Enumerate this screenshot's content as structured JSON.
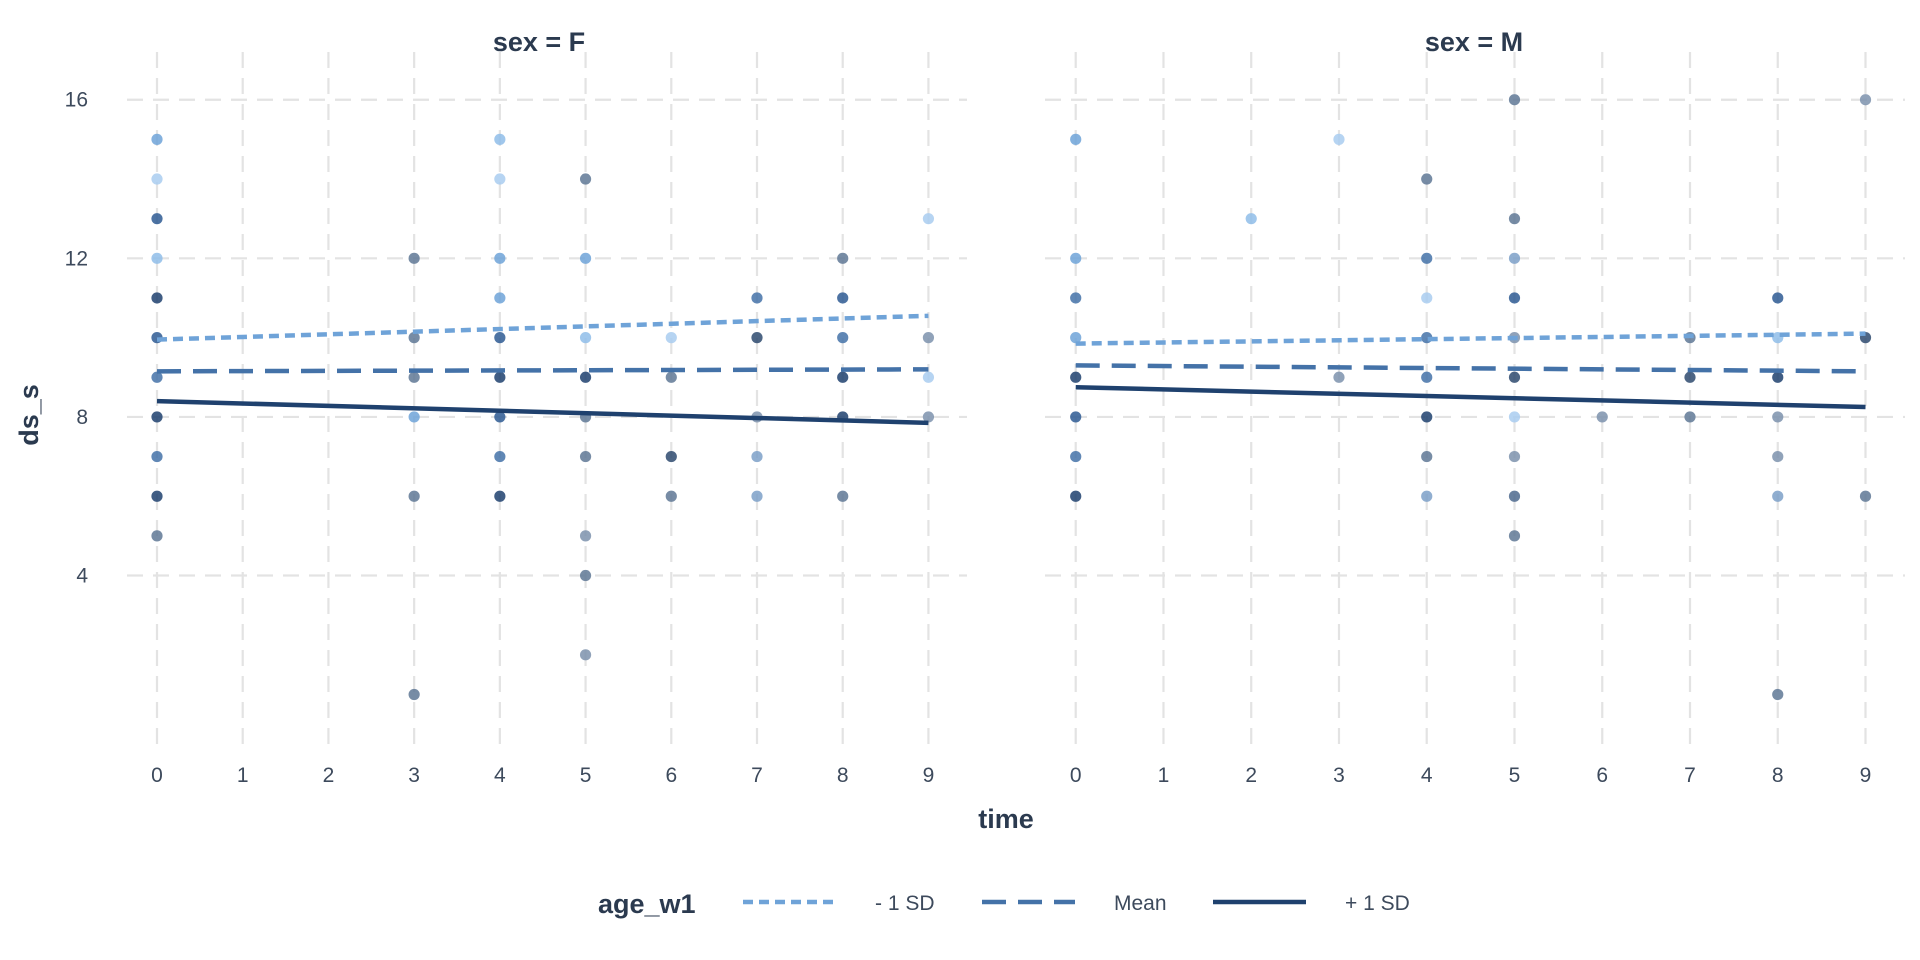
{
  "chart_data": {
    "type": "scatter",
    "title": "",
    "xlabel": "time",
    "ylabel": "ds_s",
    "xlim": [
      -0.35,
      9.45
    ],
    "ylim": [
      -0.4,
      16.8
    ],
    "x_ticks": [
      0,
      1,
      2,
      3,
      4,
      5,
      6,
      7,
      8,
      9
    ],
    "y_ticks": [
      4,
      8,
      12,
      16
    ],
    "grid": true,
    "legend": {
      "title": "age_w1",
      "position": "bottom",
      "entries": [
        {
          "label": "- 1 SD",
          "color": "#6fa3d8",
          "dash": "dotted"
        },
        {
          "label": "Mean",
          "color": "#4472a8",
          "dash": "dashed"
        },
        {
          "label": "+ 1 SD",
          "color": "#1f416e",
          "dash": "solid"
        }
      ]
    },
    "facets": [
      {
        "label": "sex = F",
        "lines": [
          {
            "name": "- 1 SD",
            "x": [
              0,
              9
            ],
            "y": [
              9.95,
              10.55
            ]
          },
          {
            "name": "Mean",
            "x": [
              0,
              9
            ],
            "y": [
              9.15,
              9.2
            ]
          },
          {
            "name": "+ 1 SD",
            "x": [
              0,
              9
            ],
            "y": [
              8.4,
              7.85
            ]
          }
        ],
        "points": [
          {
            "x": 0,
            "y": 15,
            "color": "#6fa3d8"
          },
          {
            "x": 0,
            "y": 14,
            "color": "#a9cdf0"
          },
          {
            "x": 0,
            "y": 13,
            "color": "#2e5a93"
          },
          {
            "x": 0,
            "y": 12,
            "color": "#8fbde9"
          },
          {
            "x": 0,
            "y": 11,
            "color": "#1f416e"
          },
          {
            "x": 0,
            "y": 10,
            "color": "#2e5a93"
          },
          {
            "x": 0,
            "y": 9,
            "color": "#4472a8"
          },
          {
            "x": 0,
            "y": 8,
            "color": "#1f416e"
          },
          {
            "x": 0,
            "y": 7,
            "color": "#4472a8"
          },
          {
            "x": 0,
            "y": 6,
            "color": "#1f416e"
          },
          {
            "x": 0,
            "y": 5,
            "color": "#5f7895"
          },
          {
            "x": 3,
            "y": 12,
            "color": "#5f7895"
          },
          {
            "x": 3,
            "y": 10,
            "color": "#5f7895"
          },
          {
            "x": 3,
            "y": 9,
            "color": "#5f7895"
          },
          {
            "x": 3,
            "y": 8,
            "color": "#6fa3d8"
          },
          {
            "x": 3,
            "y": 6,
            "color": "#5f7895"
          },
          {
            "x": 3,
            "y": 1,
            "color": "#5f7895"
          },
          {
            "x": 4,
            "y": 15,
            "color": "#8fbde9"
          },
          {
            "x": 4,
            "y": 14,
            "color": "#a9cdf0"
          },
          {
            "x": 4,
            "y": 12,
            "color": "#6fa3d8"
          },
          {
            "x": 4,
            "y": 11,
            "color": "#6fa3d8"
          },
          {
            "x": 4,
            "y": 10,
            "color": "#2e5a93"
          },
          {
            "x": 4,
            "y": 9,
            "color": "#1f416e"
          },
          {
            "x": 4,
            "y": 8,
            "color": "#2e5a93"
          },
          {
            "x": 4,
            "y": 7,
            "color": "#4472a8"
          },
          {
            "x": 4,
            "y": 6,
            "color": "#1f416e"
          },
          {
            "x": 5,
            "y": 14,
            "color": "#5f7895"
          },
          {
            "x": 5,
            "y": 12,
            "color": "#6fa3d8"
          },
          {
            "x": 5,
            "y": 10,
            "color": "#8fbde9"
          },
          {
            "x": 5,
            "y": 9,
            "color": "#1f416e"
          },
          {
            "x": 5,
            "y": 8,
            "color": "#5f7895"
          },
          {
            "x": 5,
            "y": 7,
            "color": "#5f7895"
          },
          {
            "x": 5,
            "y": 5,
            "color": "#7d92ad"
          },
          {
            "x": 5,
            "y": 4,
            "color": "#5f7895"
          },
          {
            "x": 5,
            "y": 2,
            "color": "#7d92ad"
          },
          {
            "x": 6,
            "y": 10,
            "color": "#a9cdf0"
          },
          {
            "x": 6,
            "y": 9,
            "color": "#5f7895"
          },
          {
            "x": 6,
            "y": 7,
            "color": "#2e4a6e"
          },
          {
            "x": 6,
            "y": 6,
            "color": "#5f7895"
          },
          {
            "x": 7,
            "y": 11,
            "color": "#4472a8"
          },
          {
            "x": 7,
            "y": 10,
            "color": "#2e4a6e"
          },
          {
            "x": 7,
            "y": 8,
            "color": "#7d92ad"
          },
          {
            "x": 7,
            "y": 7,
            "color": "#7da0c8"
          },
          {
            "x": 7,
            "y": 6,
            "color": "#7da0c8"
          },
          {
            "x": 8,
            "y": 12,
            "color": "#5f7895"
          },
          {
            "x": 8,
            "y": 11,
            "color": "#2e5a93"
          },
          {
            "x": 8,
            "y": 10,
            "color": "#4472a8"
          },
          {
            "x": 8,
            "y": 9,
            "color": "#1f416e"
          },
          {
            "x": 8,
            "y": 8,
            "color": "#1f416e"
          },
          {
            "x": 8,
            "y": 6,
            "color": "#5f7895"
          },
          {
            "x": 9,
            "y": 13,
            "color": "#a9cdf0"
          },
          {
            "x": 9,
            "y": 10,
            "color": "#7d92ad"
          },
          {
            "x": 9,
            "y": 9,
            "color": "#a9cdf0"
          },
          {
            "x": 9,
            "y": 8,
            "color": "#7d92ad"
          }
        ]
      },
      {
        "label": "sex = M",
        "lines": [
          {
            "name": "- 1 SD",
            "x": [
              0,
              9
            ],
            "y": [
              9.85,
              10.1
            ]
          },
          {
            "name": "Mean",
            "x": [
              0,
              9
            ],
            "y": [
              9.3,
              9.15
            ]
          },
          {
            "name": "+ 1 SD",
            "x": [
              0,
              9
            ],
            "y": [
              8.75,
              8.25
            ]
          }
        ],
        "points": [
          {
            "x": 0,
            "y": 15,
            "color": "#6fa3d8"
          },
          {
            "x": 0,
            "y": 12,
            "color": "#6fa3d8"
          },
          {
            "x": 0,
            "y": 11,
            "color": "#4472a8"
          },
          {
            "x": 0,
            "y": 10,
            "color": "#6fa3d8"
          },
          {
            "x": 0,
            "y": 9,
            "color": "#1f416e"
          },
          {
            "x": 0,
            "y": 8,
            "color": "#2e5a93"
          },
          {
            "x": 0,
            "y": 7,
            "color": "#4472a8"
          },
          {
            "x": 0,
            "y": 6,
            "color": "#1f416e"
          },
          {
            "x": 2,
            "y": 13,
            "color": "#8fbde9"
          },
          {
            "x": 3,
            "y": 15,
            "color": "#a9cdf0"
          },
          {
            "x": 3,
            "y": 9,
            "color": "#7d92ad"
          },
          {
            "x": 4,
            "y": 14,
            "color": "#5f7895"
          },
          {
            "x": 4,
            "y": 12,
            "color": "#4472a8"
          },
          {
            "x": 4,
            "y": 11,
            "color": "#a9cdf0"
          },
          {
            "x": 4,
            "y": 10,
            "color": "#4472a8"
          },
          {
            "x": 4,
            "y": 9,
            "color": "#4472a8"
          },
          {
            "x": 4,
            "y": 8,
            "color": "#1f416e"
          },
          {
            "x": 4,
            "y": 7,
            "color": "#5f7895"
          },
          {
            "x": 4,
            "y": 6,
            "color": "#7da0c8"
          },
          {
            "x": 5,
            "y": 16,
            "color": "#5f7895"
          },
          {
            "x": 5,
            "y": 13,
            "color": "#5f7895"
          },
          {
            "x": 5,
            "y": 12,
            "color": "#7da0c8"
          },
          {
            "x": 5,
            "y": 11,
            "color": "#2e5a93"
          },
          {
            "x": 5,
            "y": 10,
            "color": "#7d92ad"
          },
          {
            "x": 5,
            "y": 9,
            "color": "#2e4a6e"
          },
          {
            "x": 5,
            "y": 8,
            "color": "#a9cdf0"
          },
          {
            "x": 5,
            "y": 7,
            "color": "#7d92ad"
          },
          {
            "x": 5,
            "y": 6,
            "color": "#4e6a8e"
          },
          {
            "x": 5,
            "y": 5,
            "color": "#5f7895"
          },
          {
            "x": 6,
            "y": 8,
            "color": "#7d92ad"
          },
          {
            "x": 7,
            "y": 10,
            "color": "#5f7895"
          },
          {
            "x": 7,
            "y": 9,
            "color": "#2e4a6e"
          },
          {
            "x": 7,
            "y": 8,
            "color": "#5f7895"
          },
          {
            "x": 8,
            "y": 11,
            "color": "#2e5a93"
          },
          {
            "x": 8,
            "y": 10,
            "color": "#8fbde9"
          },
          {
            "x": 8,
            "y": 9,
            "color": "#1f416e"
          },
          {
            "x": 8,
            "y": 8,
            "color": "#7d92ad"
          },
          {
            "x": 8,
            "y": 7,
            "color": "#7d92ad"
          },
          {
            "x": 8,
            "y": 6,
            "color": "#7da0c8"
          },
          {
            "x": 8,
            "y": 1,
            "color": "#5f7895"
          },
          {
            "x": 9,
            "y": 16,
            "color": "#7d92ad"
          },
          {
            "x": 9,
            "y": 10,
            "color": "#2e4a6e"
          },
          {
            "x": 9,
            "y": 6,
            "color": "#5f7895"
          }
        ]
      }
    ]
  }
}
